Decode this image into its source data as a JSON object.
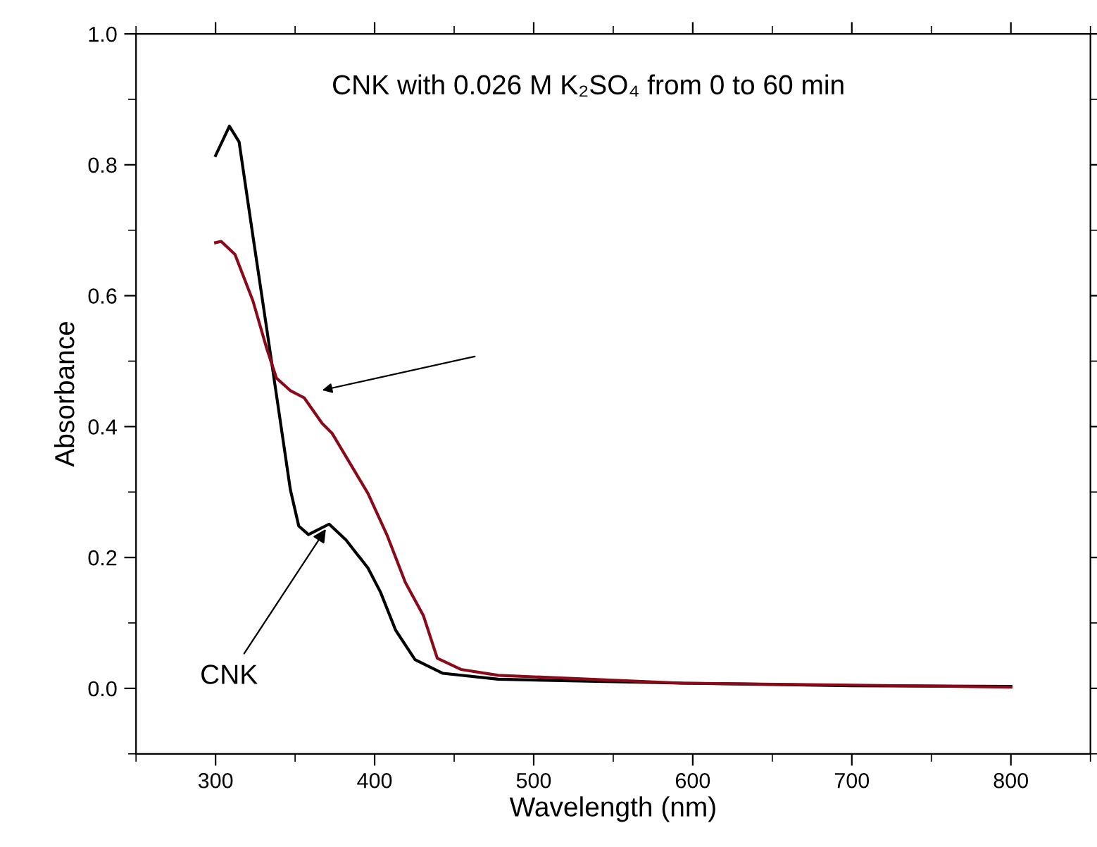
{
  "chart_data": {
    "type": "line",
    "xlabel": "Wavelength (nm)",
    "ylabel": "Absorbance",
    "xlim": [
      250,
      850
    ],
    "xticks": [
      300,
      400,
      500,
      600,
      700,
      800
    ],
    "ylim": [
      -0.1,
      1.0
    ],
    "yticks": [
      {
        "value": 0.0,
        "label": "0.0"
      },
      0.2,
      0.4,
      0.6,
      0.8,
      {
        "value": 1.0,
        "label": "1.0"
      }
    ],
    "grid": false,
    "legend": false,
    "marker": "none",
    "line_style": "solid",
    "series": [
      {
        "color": "#000000",
        "x": [
          300,
          308.7,
          314.8,
          323.5,
          332.2,
          336.6,
          338.3,
          347.0,
          352.3,
          358.4,
          371.4,
          381.9,
          395.8,
          403.7,
          413.2,
          425.4,
          442.9,
          477.7,
          593.6,
          700,
          800
        ],
        "values": [
          0.814,
          0.859,
          0.835,
          0.691,
          0.549,
          0.476,
          0.448,
          0.304,
          0.248,
          0.235,
          0.251,
          0.227,
          0.184,
          0.147,
          0.089,
          0.044,
          0.023,
          0.014,
          0.008,
          0.004,
          0.003
        ]
      },
      {
        "color": "#8b0a1a",
        "x": [
          300,
          303.5,
          312.2,
          323.5,
          332.2,
          338.3,
          347.0,
          355.7,
          367.0,
          373.2,
          395.8,
          408.0,
          419.3,
          430.7,
          439.4,
          454.2,
          477.7,
          535.0,
          593.6,
          700,
          800
        ],
        "values": [
          0.681,
          0.683,
          0.663,
          0.592,
          0.519,
          0.474,
          0.455,
          0.444,
          0.405,
          0.39,
          0.298,
          0.233,
          0.162,
          0.111,
          0.046,
          0.029,
          0.02,
          0.014,
          0.008,
          0.005,
          0.002
        ]
      }
    ],
    "annotations": [
      "CNK with 0.026 M K₂SO₄ from 0 to 60 min",
      {
        "text": "CNK",
        "x": 371.4,
        "y": 0.251
      }
    ]
  }
}
